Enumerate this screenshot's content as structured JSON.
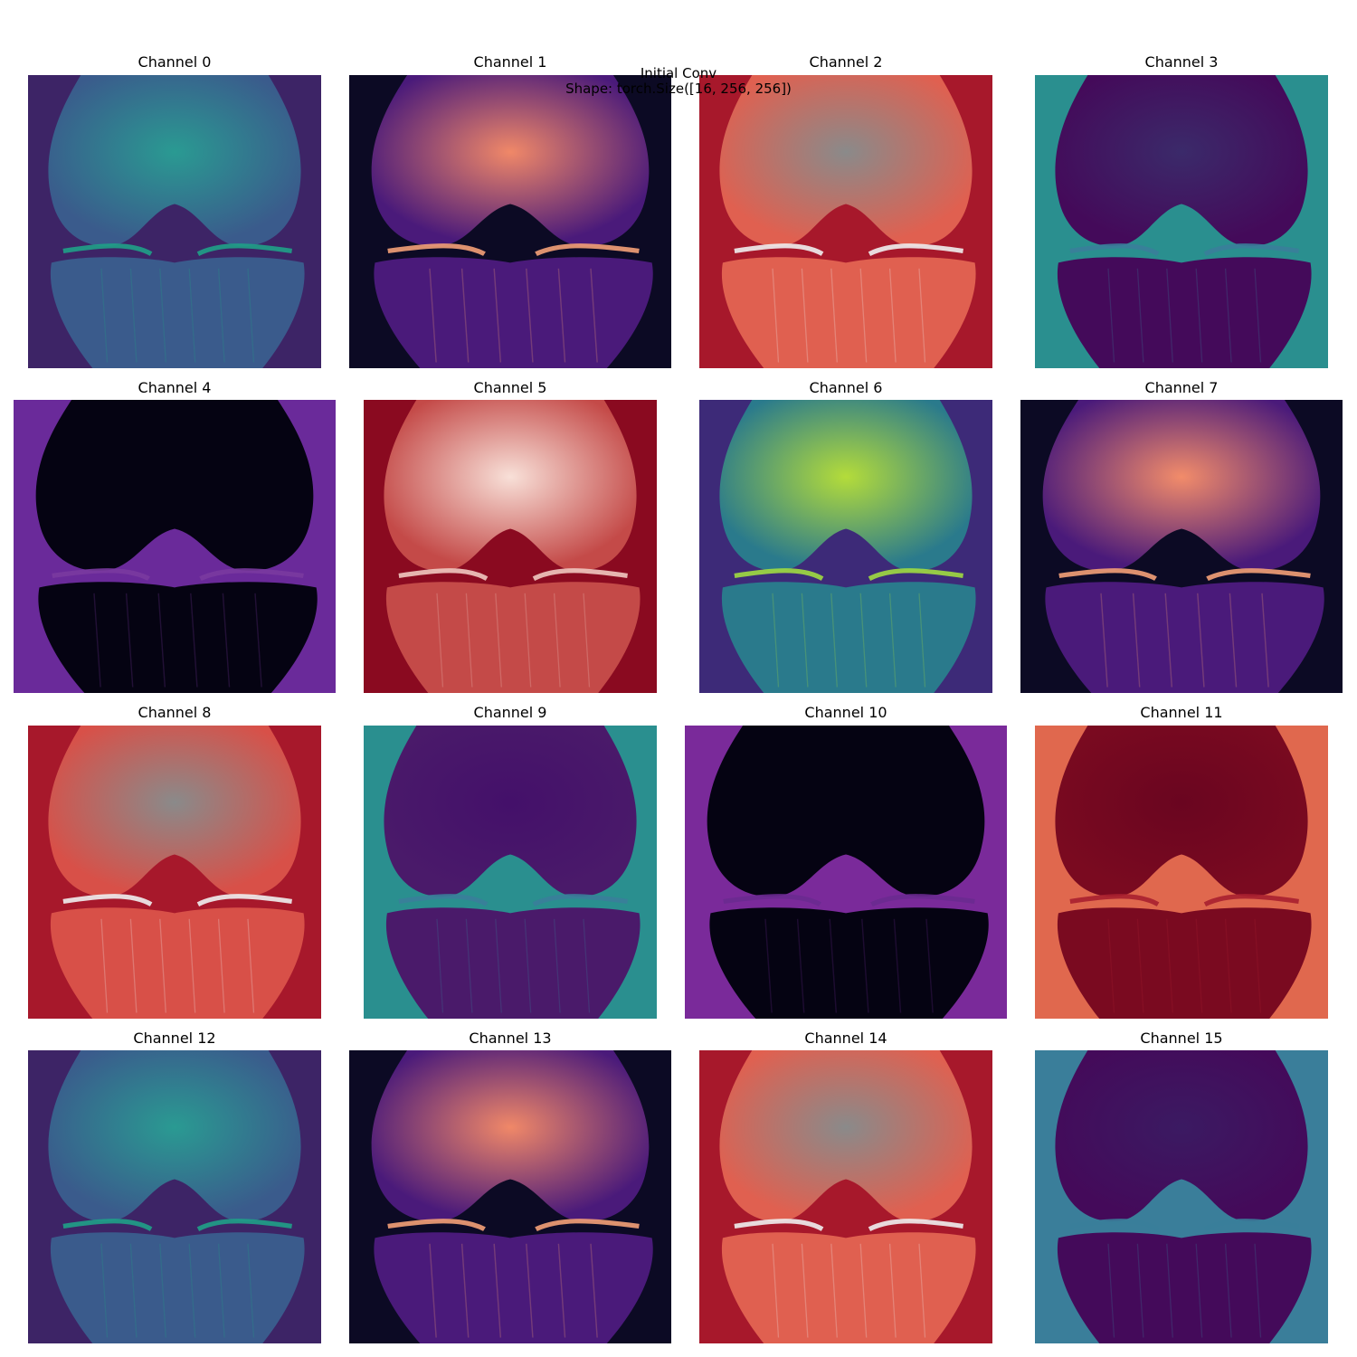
{
  "figure": {
    "title_line1": "Initial Conv",
    "title_line2": "Shape: torch.Size([16, 256, 256])"
  },
  "channels": [
    {
      "label": "Channel 0",
      "colormap": "viridis",
      "bg": "#3d2466",
      "knee": "#3a5b8c",
      "hi": "#2a9a92",
      "line": "#1fa187"
    },
    {
      "label": "Channel 1",
      "colormap": "magma",
      "bg": "#0c0a24",
      "knee": "#4a1a7a",
      "hi": "#f08868",
      "line": "#f4a078"
    },
    {
      "label": "Channel 2",
      "colormap": "RdGy",
      "bg": "#a7182b",
      "knee": "#e06050",
      "hi": "#8a8a8a",
      "line": "#f0f0f0"
    },
    {
      "label": "Channel 3",
      "colormap": "viridis",
      "bg": "#2a8f8f",
      "knee": "#440a5a",
      "hi": "#3b2a6a",
      "line": "#3a7e9a"
    },
    {
      "label": "Channel 4",
      "colormap": "magma",
      "bg": "#6a2a9a",
      "knee": "#050312",
      "hi": "#050312",
      "line": "#7a3aa0"
    },
    {
      "label": "Channel 5",
      "colormap": "Reds",
      "bg": "#8a0a20",
      "knee": "#c44a48",
      "hi": "#f8e0d8",
      "line": "#f0c8c0"
    },
    {
      "label": "Channel 6",
      "colormap": "viridis",
      "bg": "#3d2a78",
      "knee": "#2a7a8c",
      "hi": "#b4dc3a",
      "line": "#a0dc40"
    },
    {
      "label": "Channel 7",
      "colormap": "magma",
      "bg": "#0c0a24",
      "knee": "#4a1a7a",
      "hi": "#f28c6a",
      "line": "#f4a078"
    },
    {
      "label": "Channel 8",
      "colormap": "RdGy",
      "bg": "#a7182b",
      "knee": "#d85048",
      "hi": "#8a8a8a",
      "line": "#f0f0f0"
    },
    {
      "label": "Channel 9",
      "colormap": "viridis",
      "bg": "#2a8f8f",
      "knee": "#4a1a6a",
      "hi": "#44106a",
      "line": "#3a7e9a"
    },
    {
      "label": "Channel 10",
      "colormap": "magma",
      "bg": "#7a2a9a",
      "knee": "#050312",
      "hi": "#050312",
      "line": "#6a2a90"
    },
    {
      "label": "Channel 11",
      "colormap": "Reds",
      "bg": "#e0684e",
      "knee": "#7a0a20",
      "hi": "#6a0520",
      "line": "#a82030"
    },
    {
      "label": "Channel 12",
      "colormap": "viridis",
      "bg": "#3d2466",
      "knee": "#3a5b8c",
      "hi": "#2a9a92",
      "line": "#1fa187"
    },
    {
      "label": "Channel 13",
      "colormap": "magma",
      "bg": "#0c0a24",
      "knee": "#4a1a7a",
      "hi": "#f08868",
      "line": "#f4a078"
    },
    {
      "label": "Channel 14",
      "colormap": "RdGy",
      "bg": "#a7182b",
      "knee": "#e06050",
      "hi": "#8a8a8a",
      "line": "#f0f0f0"
    },
    {
      "label": "Channel 15",
      "colormap": "viridis",
      "bg": "#3a7e9a",
      "knee": "#440a5a",
      "hi": "#3b1a62",
      "line": "#3a7e9a"
    }
  ]
}
